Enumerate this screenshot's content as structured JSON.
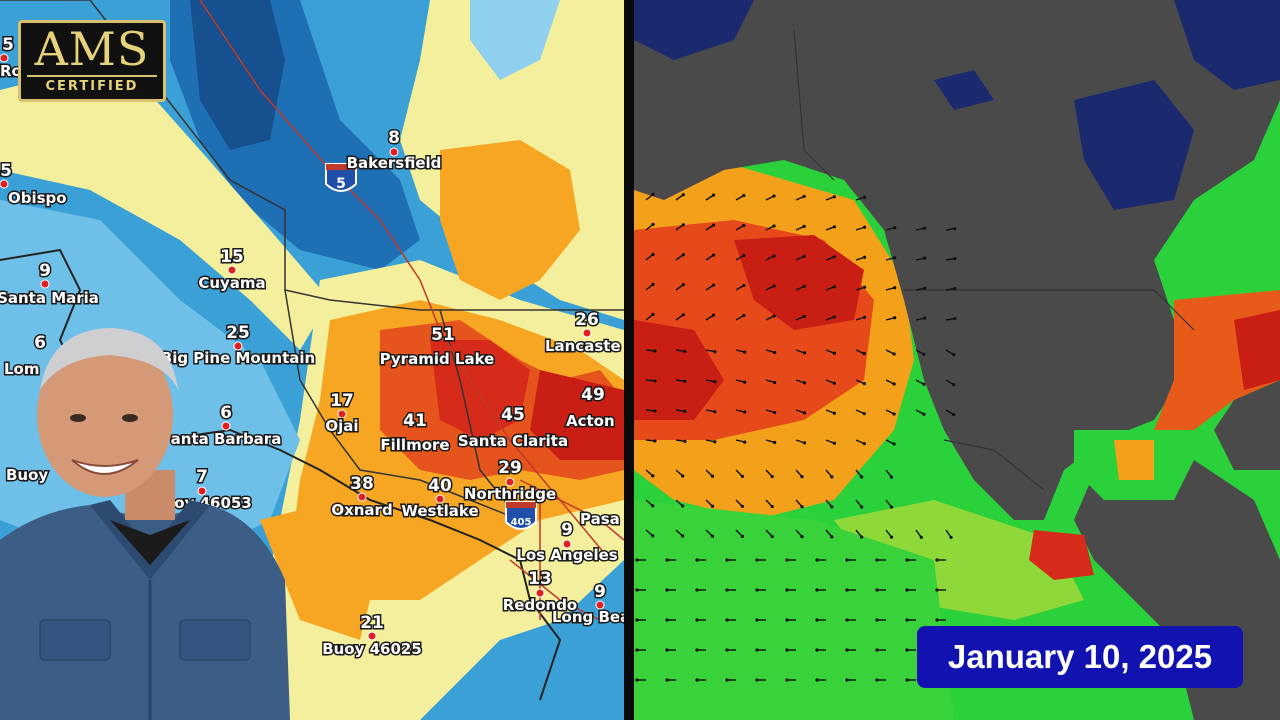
{
  "badge": {
    "ams": "AMS",
    "certified": "CERTIFIED"
  },
  "date": "January 10, 2025",
  "highway": {
    "i5": "5",
    "i405": "405"
  },
  "stations": [
    {
      "num": "8",
      "name": "Bakersfield"
    },
    {
      "num": "15",
      "name": "Cuyama"
    },
    {
      "num": "9",
      "name": "Santa Maria"
    },
    {
      "num": "25",
      "name": "Big Pine Mountain"
    },
    {
      "num": "6",
      "name": "Lom"
    },
    {
      "num": "6",
      "name": "anta Barbara"
    },
    {
      "num": "7",
      "name": "Buoy 46053"
    },
    {
      "num": "",
      "name": "Buoy"
    },
    {
      "num": "17",
      "name": "Ojai"
    },
    {
      "num": "51",
      "name": "Pyramid Lake"
    },
    {
      "num": "26",
      "name": "Lancaste"
    },
    {
      "num": "49",
      "name": "Acton"
    },
    {
      "num": "41",
      "name": "Fillmore"
    },
    {
      "num": "45",
      "name": "Santa Clarita"
    },
    {
      "num": "29",
      "name": "Northridge"
    },
    {
      "num": "38",
      "name": "Oxnard"
    },
    {
      "num": "40",
      "name": "Westlake"
    },
    {
      "num": "9",
      "name": "Los Angeles"
    },
    {
      "num": "13",
      "name": "Redondo"
    },
    {
      "num": "9",
      "name": "Long Bea"
    },
    {
      "num": "",
      "name": "Pasa"
    },
    {
      "num": "21",
      "name": "Buoy 46025"
    },
    {
      "num": "5",
      "name": "Obispo"
    },
    {
      "num": "5",
      "name": "Ro"
    }
  ],
  "colors": {
    "low": "#2a86c9",
    "mid": "#f3ef9c",
    "high": "#f6a623",
    "peak": "#d62a1a",
    "land": "#4a4a4a",
    "ocean_dark": "#1b2a6e",
    "badge_bg": "#1212b0"
  }
}
